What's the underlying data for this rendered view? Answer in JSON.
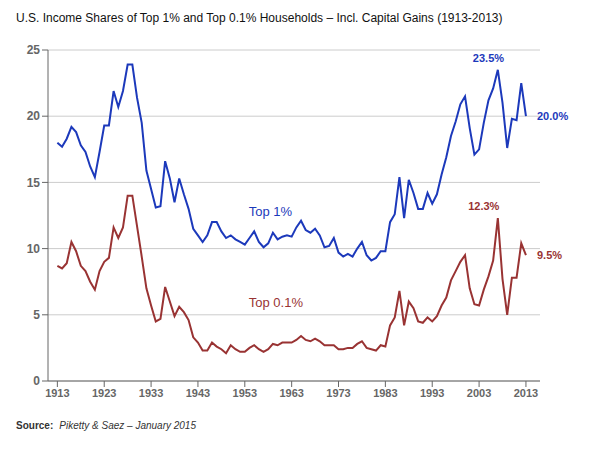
{
  "chart_data": {
    "type": "line",
    "title": "U.S. Income Shares of Top 1% and Top 0.1% Households – Incl. Capital Gains (1913-2013)",
    "source": [
      "Source:",
      "Piketty & Saez – January 2015"
    ],
    "x": [
      1913,
      1914,
      1915,
      1916,
      1917,
      1918,
      1919,
      1920,
      1921,
      1922,
      1923,
      1924,
      1925,
      1926,
      1927,
      1928,
      1929,
      1930,
      1931,
      1932,
      1933,
      1934,
      1935,
      1936,
      1937,
      1938,
      1939,
      1940,
      1941,
      1942,
      1943,
      1944,
      1945,
      1946,
      1947,
      1948,
      1949,
      1950,
      1951,
      1952,
      1953,
      1954,
      1955,
      1956,
      1957,
      1958,
      1959,
      1960,
      1961,
      1962,
      1963,
      1964,
      1965,
      1966,
      1967,
      1968,
      1969,
      1970,
      1971,
      1972,
      1973,
      1974,
      1975,
      1976,
      1977,
      1978,
      1979,
      1980,
      1981,
      1982,
      1983,
      1984,
      1985,
      1986,
      1987,
      1988,
      1989,
      1990,
      1991,
      1992,
      1993,
      1994,
      1995,
      1996,
      1997,
      1998,
      1999,
      2000,
      2001,
      2002,
      2003,
      2004,
      2005,
      2006,
      2007,
      2008,
      2009,
      2010,
      2011,
      2012,
      2013
    ],
    "series": [
      {
        "color": "#1c39bb",
        "values": [
          18.0,
          17.7,
          18.3,
          19.2,
          18.8,
          17.8,
          17.3,
          16.2,
          15.4,
          17.3,
          19.3,
          19.3,
          21.9,
          20.7,
          21.9,
          23.9,
          23.9,
          21.4,
          19.5,
          15.9,
          14.5,
          13.1,
          13.2,
          16.6,
          15.3,
          13.5,
          15.3,
          14.1,
          13.0,
          11.5,
          11.0,
          10.5,
          11.0,
          12.0,
          12.0,
          11.3,
          10.8,
          11.0,
          10.7,
          10.5,
          10.3,
          10.8,
          11.3,
          10.5,
          10.1,
          10.4,
          11.2,
          10.7,
          10.9,
          11.0,
          10.9,
          11.6,
          12.1,
          11.4,
          11.2,
          11.5,
          11.0,
          10.1,
          10.2,
          10.8,
          9.7,
          9.4,
          9.6,
          9.4,
          10.0,
          10.5,
          9.5,
          9.1,
          9.3,
          9.8,
          9.8,
          12.0,
          12.6,
          15.4,
          12.3,
          15.2,
          14.2,
          13.0,
          13.0,
          14.2,
          13.4,
          14.1,
          15.6,
          16.9,
          18.5,
          19.6,
          20.9,
          21.5,
          19.1,
          17.1,
          17.5,
          19.5,
          21.2,
          22.1,
          23.5,
          21.0,
          17.6,
          19.8,
          19.7,
          22.5,
          20.0
        ]
      },
      {
        "color": "#993333",
        "values": [
          8.7,
          8.5,
          8.9,
          10.5,
          9.8,
          8.7,
          8.3,
          7.5,
          6.9,
          8.3,
          9.0,
          9.3,
          11.6,
          10.8,
          11.6,
          14.0,
          14.0,
          11.7,
          9.4,
          7.0,
          5.7,
          4.5,
          4.7,
          7.1,
          6.0,
          4.9,
          5.6,
          5.2,
          4.6,
          3.3,
          2.9,
          2.3,
          2.3,
          2.9,
          2.6,
          2.4,
          2.1,
          2.7,
          2.4,
          2.2,
          2.2,
          2.5,
          2.7,
          2.4,
          2.2,
          2.4,
          2.8,
          2.7,
          2.9,
          2.9,
          2.9,
          3.1,
          3.4,
          3.1,
          3.0,
          3.2,
          3.0,
          2.7,
          2.7,
          2.7,
          2.4,
          2.4,
          2.5,
          2.5,
          2.8,
          3.0,
          2.5,
          2.4,
          2.3,
          2.7,
          2.6,
          4.2,
          4.8,
          6.8,
          4.2,
          6.0,
          5.5,
          4.5,
          4.4,
          4.8,
          4.5,
          4.9,
          5.7,
          6.3,
          7.6,
          8.3,
          9.0,
          9.5,
          7.0,
          5.8,
          5.7,
          6.9,
          7.9,
          9.1,
          12.3,
          7.7,
          5.0,
          7.8,
          7.8,
          10.4,
          9.5
        ]
      }
    ],
    "xlim": [
      1911,
      2016
    ],
    "xticks": [
      1913,
      1923,
      1933,
      1943,
      1953,
      1963,
      1973,
      1983,
      1993,
      2003,
      2013
    ],
    "ylim": [
      0,
      25
    ],
    "yticks": [
      0,
      5,
      10,
      15,
      20,
      25
    ],
    "grid": true,
    "annotations": [
      {
        "text": "Top 1%",
        "x": 1953,
        "y": 12.8,
        "color": "#1c39bb"
      },
      {
        "text": "Top 0.1%",
        "x": 1953,
        "y": 5.9,
        "color": "#993333"
      },
      {
        "text": "23.5%",
        "x": 2005,
        "y": 23.8,
        "color": "#1c39bb"
      },
      {
        "text": "20.0%",
        "x": 2014.5,
        "y": 20.0,
        "color": "#1c39bb"
      },
      {
        "text": "12.3%",
        "x": 2004,
        "y": 12.6,
        "color": "#993333"
      },
      {
        "text": "9.5%",
        "x": 2014.5,
        "y": 9.5,
        "color": "#993333"
      }
    ]
  }
}
